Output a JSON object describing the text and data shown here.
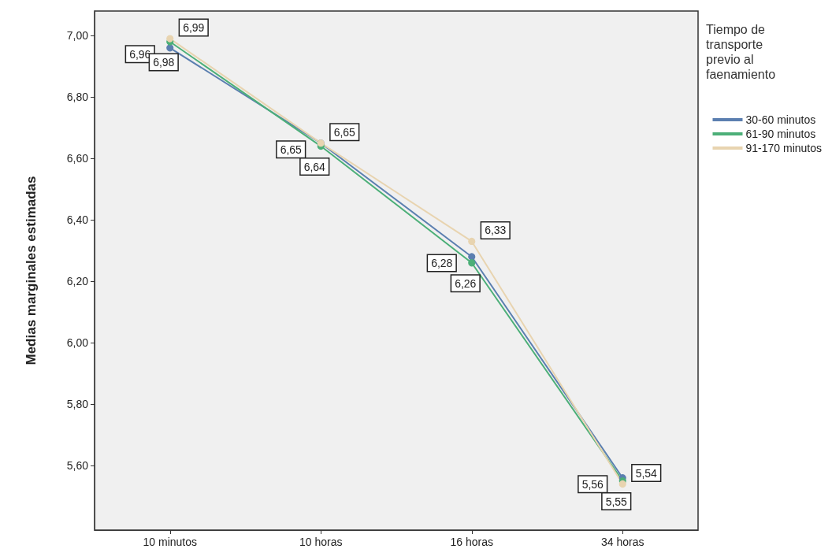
{
  "chart_data": {
    "type": "line",
    "ylabel": "Medias marginales estimadas",
    "legend_title": "Tiempo de transporte previo al faenamiento",
    "categories": [
      "10 minutos",
      "10 horas",
      "16 horas",
      "34 horas"
    ],
    "series": [
      {
        "name": "30-60 minutos",
        "color": "#5b7fb0",
        "values": [
          6.96,
          6.65,
          6.28,
          5.56
        ],
        "value_labels": [
          "6,96",
          "6,65",
          "6,28",
          "5,56"
        ]
      },
      {
        "name": "61-90 minutos",
        "color": "#4caf78",
        "values": [
          6.98,
          6.64,
          6.26,
          5.55
        ],
        "value_labels": [
          "6,98",
          "6,64",
          "6,26",
          "5,55"
        ]
      },
      {
        "name": "91-170 minutos",
        "color": "#e8d4b0",
        "values": [
          6.99,
          6.65,
          6.33,
          5.54
        ],
        "value_labels": [
          "6,99",
          "6,65",
          "6,33",
          "5,54"
        ]
      }
    ],
    "ylim": [
      5.39,
      7.08
    ],
    "yticks": [
      {
        "value": 5.6,
        "label": "5,60"
      },
      {
        "value": 5.8,
        "label": "5,80"
      },
      {
        "value": 6,
        "label": "6,00"
      },
      {
        "value": 6.2,
        "label": "6,20"
      },
      {
        "value": 6.4,
        "label": "6,40"
      },
      {
        "value": 6.6,
        "label": "6,60"
      },
      {
        "value": 6.8,
        "label": "6,80"
      },
      {
        "value": 7,
        "label": "7,00"
      }
    ],
    "grid": false,
    "legend": "right",
    "marker": "circle",
    "line_style": "solid"
  }
}
